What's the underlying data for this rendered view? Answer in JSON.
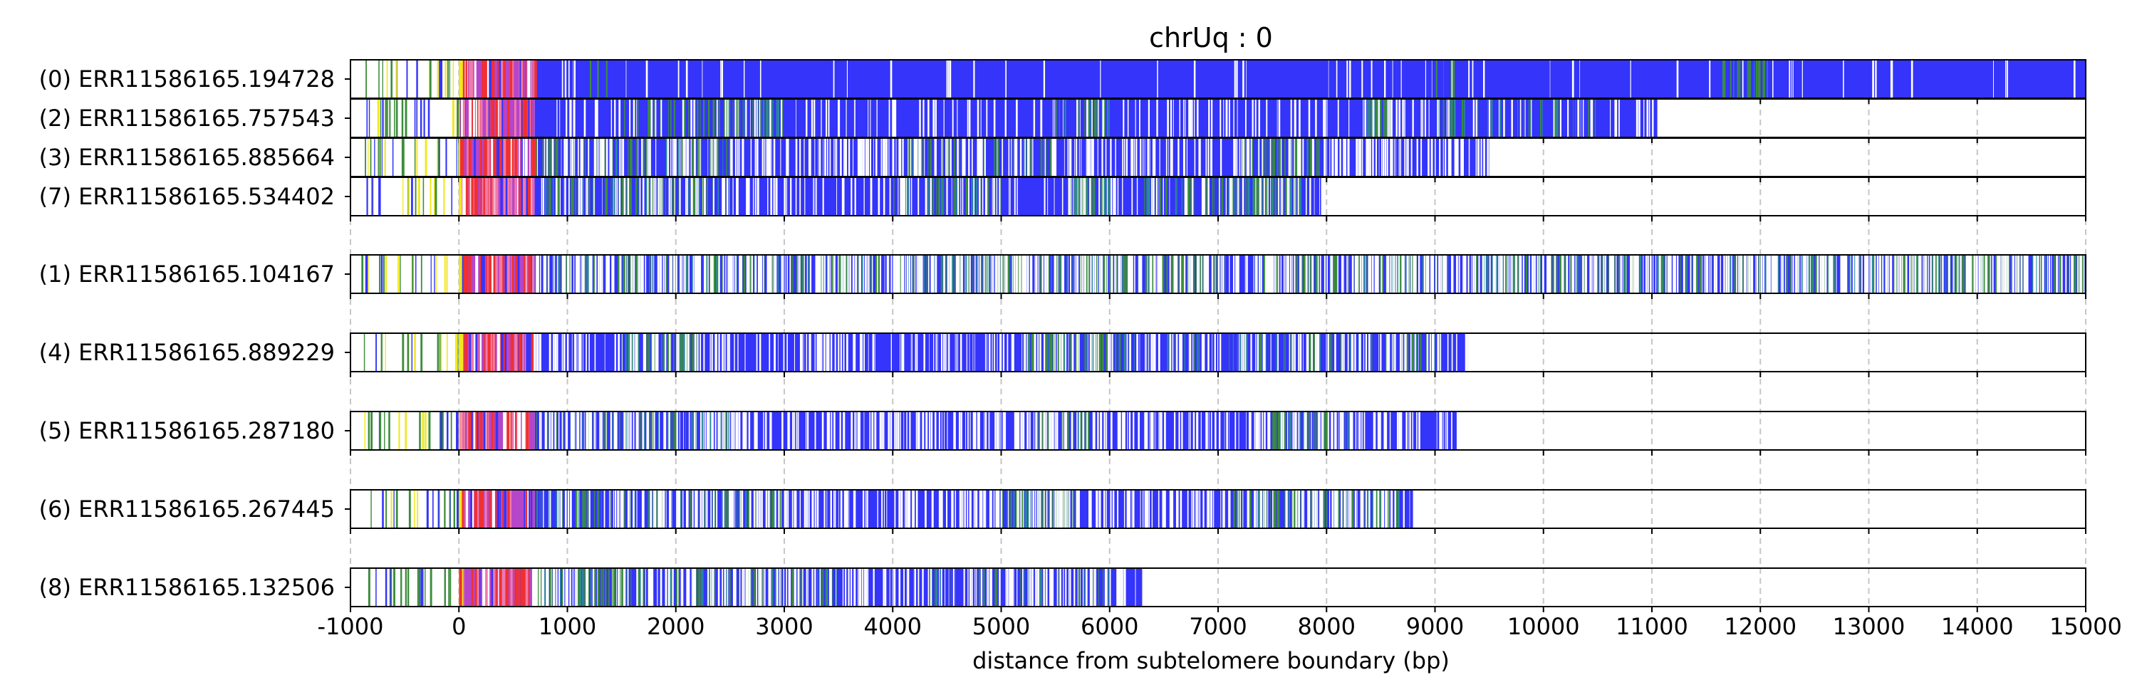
{
  "chart_data": {
    "type": "heatmap",
    "title": "chrUq : 0",
    "xlabel": "distance from subtelomere boundary (bp)",
    "ylabel": "",
    "xlim": [
      -1000,
      15000
    ],
    "x_ticks": [
      "-1000",
      "0",
      "1000",
      "2000",
      "3000",
      "4000",
      "5000",
      "6000",
      "7000",
      "8000",
      "9000",
      "10000",
      "11000",
      "12000",
      "13000",
      "14000",
      "15000"
    ],
    "x_tick_values": [
      -1000,
      0,
      1000,
      2000,
      3000,
      4000,
      5000,
      6000,
      7000,
      8000,
      9000,
      10000,
      11000,
      12000,
      13000,
      14000,
      15000
    ],
    "grid": "vertical dashed at x ticks",
    "colors": {
      "main": "#3434fb",
      "green": "#3c8c3c",
      "teal": "#2a8a9a",
      "red": "#f03030",
      "yellow": "#f2e81e",
      "magenta": "#b545c9",
      "pink": "#f07aa8",
      "white": "#ffffff"
    },
    "groups": [
      {
        "reads": [
          {
            "label": "(0) ERR11586165.194728",
            "end": 15000,
            "green_zones": [
              [
                1200,
                1600,
                0.05
              ],
              [
                9000,
                9200,
                0.15
              ],
              [
                11600,
                12100,
                0.3
              ]
            ],
            "white_density": 0.03
          },
          {
            "label": "(2) ERR11586165.757543",
            "end": 11050,
            "green_zones": [
              [
                1500,
                3000,
                0.25
              ],
              [
                5500,
                6000,
                0.3
              ],
              [
                8300,
                8600,
                0.55
              ],
              [
                9000,
                10500,
                0.15
              ]
            ],
            "white_density": 0.12
          },
          {
            "label": "(3) ERR11586165.885664",
            "end": 9500,
            "green_zones": [
              [
                700,
                2500,
                0.2
              ],
              [
                4000,
                5500,
                0.15
              ],
              [
                7200,
                8000,
                0.3
              ]
            ],
            "white_density": 0.3
          },
          {
            "label": "(7) ERR11586165.534402",
            "end": 7950,
            "green_zones": [
              [
                700,
                2500,
                0.25
              ],
              [
                4000,
                5000,
                0.2
              ],
              [
                5600,
                6000,
                0.6
              ],
              [
                6300,
                7900,
                0.35
              ]
            ],
            "white_density": 0.18
          }
        ]
      },
      {
        "reads": [
          {
            "label": "(1) ERR11586165.104167",
            "end": 15000,
            "green_zones": [
              [
                700,
                2500,
                0.3
              ],
              [
                2500,
                6000,
                0.35
              ],
              [
                6000,
                9000,
                0.3
              ],
              [
                9000,
                12000,
                0.3
              ],
              [
                12000,
                15000,
                0.35
              ]
            ],
            "white_density": 0.42
          }
        ]
      },
      {
        "reads": [
          {
            "label": "(4) ERR11586165.889229",
            "end": 9300,
            "green_zones": [
              [
                1500,
                2200,
                0.55
              ],
              [
                5200,
                6000,
                0.5
              ],
              [
                6000,
                9200,
                0.15
              ]
            ],
            "white_density": 0.25
          }
        ]
      },
      {
        "reads": [
          {
            "label": "(5) ERR11586165.287180",
            "end": 9200,
            "green_zones": [
              [
                700,
                2500,
                0.2
              ],
              [
                5300,
                5800,
                0.3
              ],
              [
                7500,
                8200,
                0.4
              ]
            ],
            "white_density": 0.3
          }
        ]
      },
      {
        "reads": [
          {
            "label": "(6) ERR11586165.267445",
            "end": 8800,
            "green_zones": [
              [
                700,
                3000,
                0.2
              ],
              [
                5000,
                5700,
                0.4
              ],
              [
                7000,
                8700,
                0.3
              ]
            ],
            "white_density": 0.33
          }
        ]
      },
      {
        "reads": [
          {
            "label": "(8) ERR11586165.132506",
            "end": 6300,
            "green_zones": [
              [
                700,
                2000,
                0.35
              ],
              [
                2000,
                3500,
                0.2
              ],
              [
                4000,
                6200,
                0.1
              ]
            ],
            "white_density": 0.3
          }
        ]
      }
    ]
  }
}
